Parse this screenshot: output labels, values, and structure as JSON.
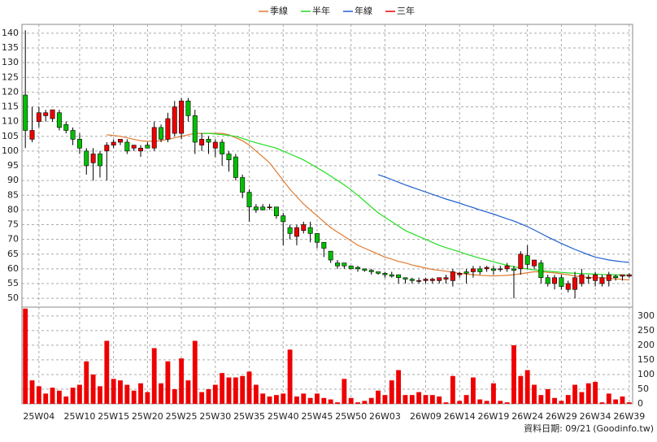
{
  "chart_data": {
    "type": "candlestick",
    "legend": "top",
    "grid": true,
    "categories": [
      null,
      null,
      "25W04",
      null,
      null,
      null,
      null,
      null,
      "25W10",
      null,
      null,
      null,
      null,
      "25W15",
      null,
      null,
      null,
      null,
      "25W20",
      null,
      null,
      null,
      null,
      "25W25",
      null,
      null,
      null,
      null,
      "25W30",
      null,
      null,
      null,
      null,
      "25W35",
      null,
      null,
      null,
      null,
      "25W40",
      null,
      null,
      null,
      null,
      "25W45",
      null,
      null,
      null,
      null,
      "25W50",
      null,
      null,
      null,
      null,
      "26W03",
      null,
      null,
      null,
      null,
      null,
      "26W09",
      null,
      null,
      null,
      null,
      "26W14",
      null,
      null,
      null,
      null,
      "26W19",
      null,
      null,
      null,
      null,
      "26W24",
      null,
      null,
      null,
      null,
      "26W29",
      null,
      null,
      null,
      null,
      "26W34",
      null,
      null,
      null,
      null,
      "26W39"
    ],
    "open": [
      119,
      104,
      110,
      112,
      111,
      113,
      109,
      107,
      104,
      100,
      96,
      99,
      100,
      102,
      103,
      103,
      101,
      100,
      102,
      101,
      108,
      104,
      106,
      106,
      117,
      112,
      102,
      104,
      101,
      103,
      99,
      98,
      91,
      86,
      81,
      81,
      81,
      81,
      78,
      74,
      71,
      73,
      74,
      72,
      69,
      66,
      62,
      62,
      61,
      60.5,
      60,
      59.5,
      59,
      58.5,
      58,
      58,
      57,
      56.5,
      56,
      56,
      56,
      56,
      56.5,
      56,
      58,
      59,
      59,
      60,
      60,
      60,
      60,
      60,
      60,
      60,
      64.5,
      61,
      62,
      57,
      55,
      57,
      53,
      53,
      55,
      57,
      56,
      55,
      56,
      57.5,
      57.5,
      57.5
    ],
    "high": [
      141,
      115,
      115,
      114,
      114,
      114,
      110,
      108,
      106,
      101,
      101,
      100,
      103,
      104,
      104,
      104,
      102,
      102,
      103,
      110,
      109,
      113,
      117,
      118,
      118,
      114,
      106,
      105,
      104,
      104,
      100,
      99,
      92,
      87,
      82,
      82,
      82,
      81,
      79,
      75,
      75,
      76,
      76,
      72,
      69,
      66,
      63,
      62,
      61,
      61,
      60,
      60,
      59,
      59,
      59,
      58,
      57,
      57,
      57,
      57,
      57,
      57,
      58,
      60,
      59,
      60,
      61,
      61,
      61,
      61,
      61,
      62,
      61,
      66,
      68,
      63,
      63,
      58,
      58,
      58,
      56,
      59,
      60,
      58,
      59,
      58,
      59,
      58,
      58,
      58.5
    ],
    "low": [
      101,
      103,
      108,
      110,
      110,
      107,
      106,
      102,
      99,
      92,
      90,
      91,
      90,
      101,
      102,
      99,
      100,
      98,
      101,
      100,
      103,
      103,
      105,
      104,
      110,
      99,
      100,
      99,
      98,
      95,
      93,
      90,
      84,
      76,
      79,
      80,
      80,
      77,
      68,
      70,
      68,
      72,
      69,
      67,
      64,
      62,
      60,
      60,
      60,
      59,
      59,
      58,
      58,
      57,
      57,
      55,
      55,
      55,
      55,
      55,
      55,
      55,
      55,
      54,
      57,
      55,
      57,
      58,
      59,
      58,
      59,
      59,
      50,
      58,
      60,
      60,
      55,
      54,
      53,
      53,
      52,
      50,
      54,
      55,
      54,
      54,
      54,
      56,
      56,
      57
    ],
    "close": [
      107,
      107,
      113,
      113,
      114,
      108,
      107,
      104,
      101,
      95,
      99,
      95,
      102,
      103,
      104,
      100,
      102,
      101,
      101,
      108,
      104,
      111,
      115,
      117,
      112,
      103,
      104,
      103,
      103,
      99,
      97,
      91,
      86,
      81,
      80,
      80,
      81,
      78,
      76,
      72,
      74,
      75,
      72,
      69,
      67,
      63,
      61,
      61,
      60,
      60,
      59.5,
      59,
      58.5,
      58,
      57.5,
      57,
      56.5,
      56,
      56,
      56.5,
      56.5,
      57,
      57,
      59,
      58.5,
      58.5,
      60,
      59,
      60.5,
      59.5,
      60,
      61,
      59.5,
      65,
      61.5,
      63,
      57,
      55,
      57,
      54,
      55,
      57,
      58,
      57,
      58,
      57,
      58,
      57,
      58,
      58
    ],
    "up_color": "#ee0000",
    "down_color": "#00c000",
    "ylim": [
      47,
      143
    ],
    "yticks": [
      50,
      55,
      60,
      65,
      70,
      75,
      80,
      85,
      90,
      95,
      100,
      105,
      110,
      115,
      120,
      125,
      130,
      135,
      140
    ],
    "series": [
      {
        "name": "季線",
        "color": "#e07a30",
        "values": [
          null,
          null,
          null,
          null,
          null,
          null,
          null,
          null,
          null,
          null,
          null,
          null,
          105.5,
          105.3,
          105,
          104.5,
          104,
          103.5,
          103.3,
          103.3,
          103.5,
          104,
          104.5,
          105,
          105.5,
          106,
          106,
          106,
          106,
          106,
          105.5,
          104.5,
          103.5,
          102,
          100,
          98,
          96,
          93,
          90,
          87,
          84.5,
          82,
          80,
          78,
          76,
          74,
          72.5,
          71,
          69.5,
          68,
          67,
          66,
          65,
          64,
          63.3,
          62.5,
          62,
          61.3,
          60.8,
          60.3,
          59.8,
          59.5,
          59.2,
          58.8,
          58.5,
          58.2,
          58,
          57.8,
          57.7,
          57.6,
          57.7,
          57.8,
          58,
          58.3,
          58.7,
          59,
          59,
          58.8,
          58.6,
          58.3,
          58,
          57.6,
          57.3,
          57.1,
          57,
          57,
          56.8,
          56.6,
          56.4,
          56.2
        ]
      },
      {
        "name": "半年",
        "color": "#22dd22",
        "values": [
          null,
          null,
          null,
          null,
          null,
          null,
          null,
          null,
          null,
          null,
          null,
          null,
          null,
          null,
          null,
          null,
          null,
          null,
          null,
          null,
          null,
          null,
          null,
          null,
          null,
          null,
          106,
          106,
          105.8,
          105.6,
          105.3,
          105,
          104.3,
          103.5,
          102.8,
          102.2,
          101.6,
          101,
          100,
          99,
          98,
          97,
          95.7,
          94.3,
          93,
          91.5,
          90,
          88.5,
          86.8,
          85,
          83,
          81,
          79,
          77.5,
          76,
          74.5,
          73,
          72,
          71,
          70,
          69,
          68,
          67.2,
          66.5,
          65.8,
          65,
          64.3,
          63.6,
          63,
          62.4,
          61.8,
          61.2,
          60.7,
          60.3,
          60,
          59.7,
          59.4,
          59.2,
          59,
          58.8,
          58.6,
          58.5,
          58.4,
          58.3,
          58.2,
          58.1,
          58,
          58,
          57.9,
          57.8
        ]
      },
      {
        "name": "年線",
        "color": "#2060d0",
        "values": [
          null,
          null,
          null,
          null,
          null,
          null,
          null,
          null,
          null,
          null,
          null,
          null,
          null,
          null,
          null,
          null,
          null,
          null,
          null,
          null,
          null,
          null,
          null,
          null,
          null,
          null,
          null,
          null,
          null,
          null,
          null,
          null,
          null,
          null,
          null,
          null,
          null,
          null,
          null,
          null,
          null,
          null,
          null,
          null,
          null,
          null,
          null,
          null,
          null,
          null,
          null,
          null,
          92,
          91.2,
          90.3,
          89.4,
          88.5,
          87.7,
          86.9,
          86.1,
          85.3,
          84.5,
          83.7,
          83,
          82.3,
          81.5,
          80.8,
          80,
          79.3,
          78.6,
          77.8,
          77,
          76.2,
          75.3,
          74.3,
          73.2,
          72,
          70.8,
          69.7,
          68.6,
          67.6,
          66.6,
          65.7,
          64.8,
          64,
          63.5,
          63,
          62.7,
          62.4,
          62.2
        ]
      },
      {
        "name": "三年",
        "color": "#ee0000",
        "values": [
          null,
          null,
          null,
          null,
          null,
          null,
          null,
          null,
          null,
          null,
          null,
          null,
          null,
          null,
          null,
          null,
          null,
          null,
          null,
          null,
          null,
          null,
          null,
          null,
          null,
          null,
          null,
          null,
          null,
          null,
          null,
          null,
          null,
          null,
          null,
          null,
          null,
          null,
          null,
          null,
          null,
          null,
          null,
          null,
          null,
          null,
          null,
          null,
          null,
          null,
          null,
          null,
          null,
          null,
          null,
          null,
          null,
          null,
          null,
          null,
          null,
          null,
          null,
          null,
          null,
          null,
          null,
          null,
          null,
          null,
          null,
          null,
          null,
          null,
          null,
          null,
          null,
          null,
          null,
          null,
          null,
          null,
          null,
          null,
          null,
          null,
          null,
          null,
          null,
          null
        ]
      }
    ],
    "volume": {
      "color": "#ee0000",
      "ylim": [
        0,
        330
      ],
      "yticks": [
        0,
        50,
        100,
        150,
        200,
        250,
        300
      ],
      "values": [
        325,
        80,
        60,
        35,
        55,
        45,
        25,
        55,
        65,
        145,
        100,
        60,
        215,
        85,
        80,
        65,
        45,
        70,
        40,
        190,
        70,
        145,
        50,
        155,
        80,
        215,
        40,
        50,
        65,
        105,
        90,
        90,
        95,
        110,
        65,
        35,
        25,
        30,
        35,
        185,
        25,
        35,
        20,
        35,
        20,
        15,
        5,
        85,
        20,
        5,
        10,
        20,
        45,
        30,
        80,
        115,
        30,
        30,
        40,
        30,
        30,
        25,
        5,
        95,
        10,
        30,
        90,
        15,
        10,
        70,
        10,
        5,
        200,
        95,
        115,
        65,
        30,
        50,
        20,
        10,
        30,
        65,
        40,
        70,
        75,
        5,
        35,
        15,
        25,
        5
      ]
    }
  },
  "footer": {
    "date": "資料日期: 09/21",
    "source": "(Goodinfo.tw)"
  }
}
